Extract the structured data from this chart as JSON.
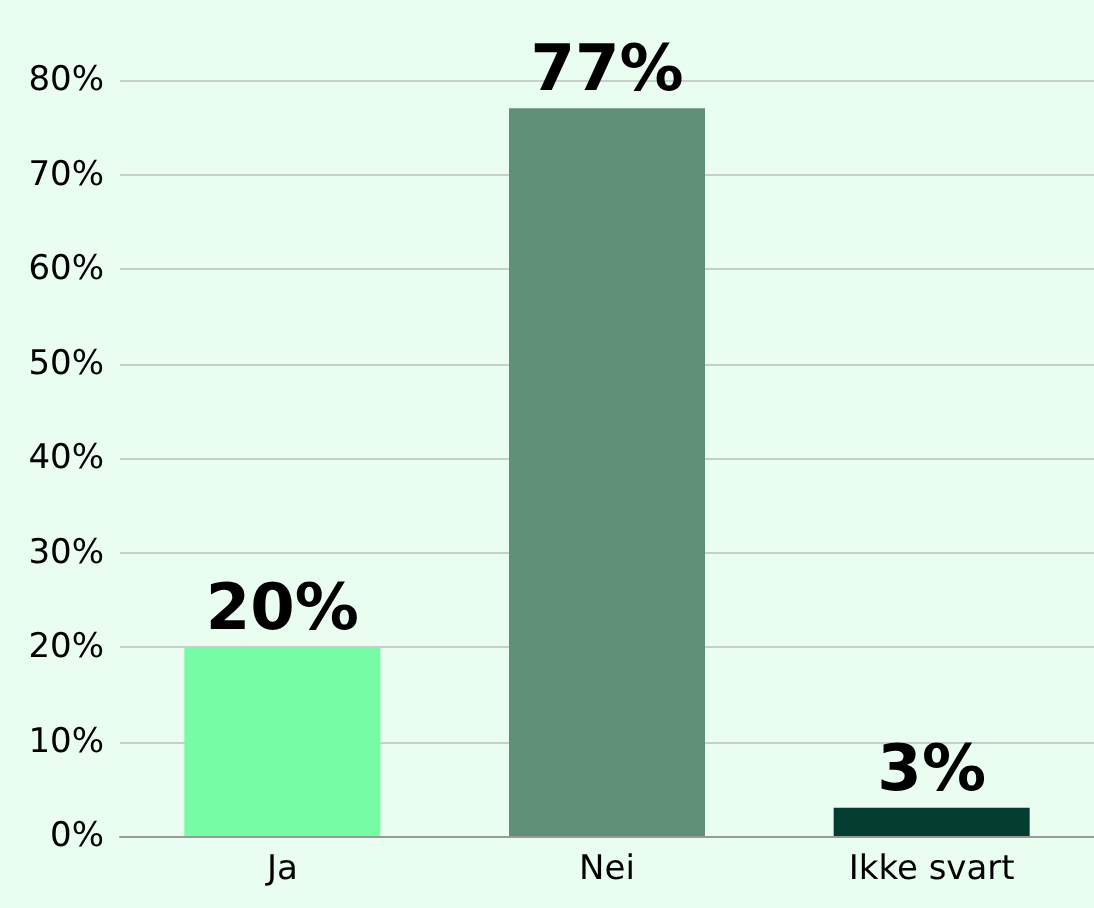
{
  "chart_data": {
    "type": "bar",
    "categories": [
      "Ja",
      "Nei",
      "Ikke svart"
    ],
    "values": [
      20,
      77,
      3
    ],
    "colors": [
      "#77fca6",
      "#5f8f77",
      "#033d2f"
    ],
    "value_labels": [
      "20%",
      "77%",
      "3%"
    ],
    "ylim": [
      0,
      80
    ],
    "yticks": [
      {
        "value": 0,
        "label": "0%"
      },
      {
        "value": 10,
        "label": "10%"
      },
      {
        "value": 20,
        "label": "20%"
      },
      {
        "value": 30,
        "label": "30%"
      },
      {
        "value": 40,
        "label": "40%"
      },
      {
        "value": 50,
        "label": "50%"
      },
      {
        "value": 60,
        "label": "60%"
      },
      {
        "value": 70,
        "label": "70%"
      },
      {
        "value": 80,
        "label": "80%"
      }
    ],
    "grid": "y"
  }
}
